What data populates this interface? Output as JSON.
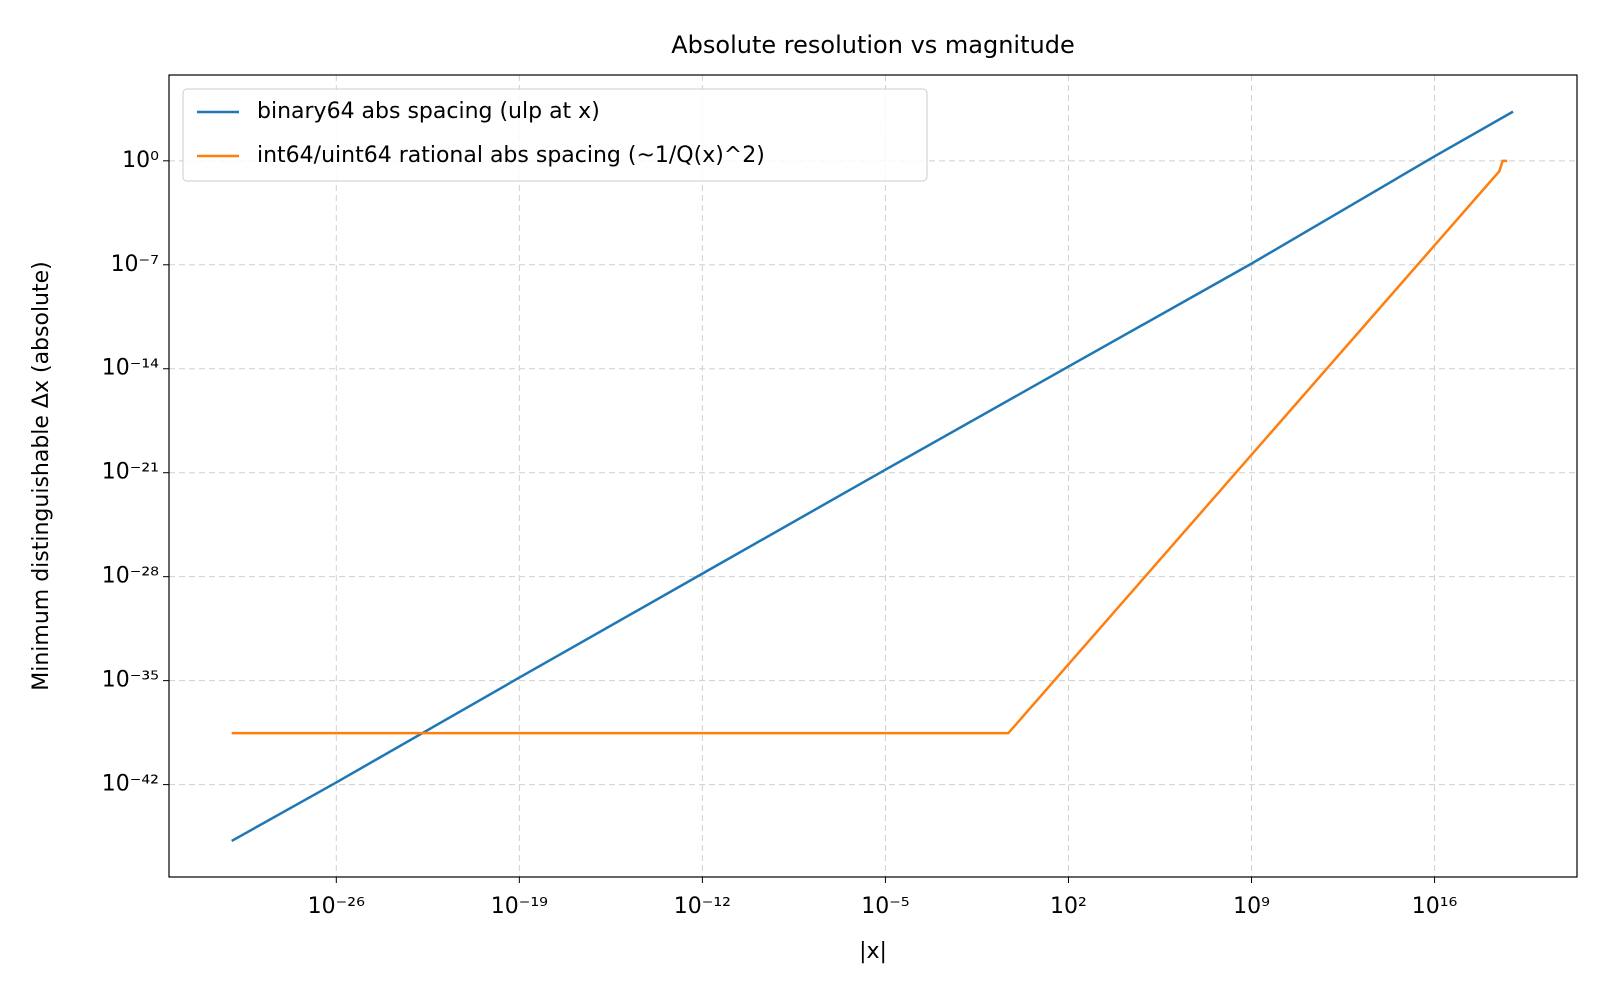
{
  "chart_data": {
    "type": "line",
    "title": "Absolute resolution vs magnitude",
    "x_label": "|x|",
    "y_label": "Minimum distinguishable Δx (absolute)",
    "x_scale": "log",
    "y_scale": "log",
    "grid": true,
    "legend": "upper left",
    "xlim": [
      4e-33,
      2.8e+21
    ],
    "ylim": [
      6e-49,
      600000.0
    ],
    "xticks": [
      {
        "value": 1e-26,
        "label": "10⁻²⁶"
      },
      {
        "value": 1e-19,
        "label": "10⁻¹⁹"
      },
      {
        "value": 1e-12,
        "label": "10⁻¹²"
      },
      {
        "value": 1e-05,
        "label": "10⁻⁵"
      },
      {
        "value": 100,
        "label": "10²"
      },
      {
        "value": 1000000000.0,
        "label": "10⁹"
      },
      {
        "value": 1e+16,
        "label": "10¹⁶"
      }
    ],
    "yticks": [
      {
        "value": 1,
        "label": "10⁰"
      },
      {
        "value": 1e-07,
        "label": "10⁻⁷"
      },
      {
        "value": 1e-14,
        "label": "10⁻¹⁴"
      },
      {
        "value": 1e-21,
        "label": "10⁻²¹"
      },
      {
        "value": 1e-28,
        "label": "10⁻²⁸"
      },
      {
        "value": 1e-35,
        "label": "10⁻³⁵"
      },
      {
        "value": 1e-42,
        "label": "10⁻⁴²"
      }
    ],
    "series": [
      {
        "name": "binary64 abs spacing (ulp at x)",
        "color": "#1f77b4",
        "x": [
          1e-30,
          1e-26,
          1e-19,
          1e-12,
          1e-05,
          100,
          1000000000.0,
          1e+16,
          1e+19
        ],
        "values": [
          1.6e-46,
          1.4e-42,
          1.6e-35,
          1.6e-28,
          1.6e-21,
          1.4e-14,
          1.2e-07,
          2,
          2048
        ]
      },
      {
        "name": "int64/uint64 rational abs spacing (~1/Q(x)^2)",
        "color": "#ff7f0e",
        "x": [
          1e-30,
          0.5,
          3e+18,
          4e+18,
          6e+18
        ],
        "values": [
          2.9e-39,
          2.9e-39,
          0.2,
          1,
          1
        ]
      }
    ]
  }
}
